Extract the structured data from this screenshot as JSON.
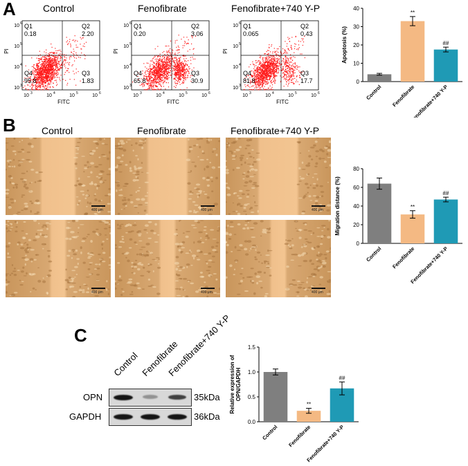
{
  "panels": {
    "A": {
      "letter": "A",
      "groups": [
        "Control",
        "Fenofibrate",
        "Fenofibrate+740 Y-P"
      ],
      "flow_axes": {
        "x_label": "FITC",
        "y_label": "PI",
        "x_ticks": [
          "10",
          "10",
          "10",
          "10"
        ],
        "x_exps": [
          "3",
          "4",
          "5",
          "6"
        ],
        "y_ticks": [
          "10",
          "10",
          "10",
          "10"
        ],
        "y_exps": [
          "6",
          "5",
          "4",
          "3"
        ]
      },
      "quadrants": [
        {
          "Q1": "0.18",
          "Q2": "2.20",
          "Q3": "1.83",
          "Q4": "95.8"
        },
        {
          "Q1": "0.20",
          "Q2": "3.06",
          "Q3": "30.9",
          "Q4": "65.8"
        },
        {
          "Q1": "0.065",
          "Q2": "0.43",
          "Q3": "17.7",
          "Q4": "81.8"
        }
      ],
      "quadrant_names": {
        "q1": "Q1",
        "q2": "Q2",
        "q3": "Q3",
        "q4": "Q4"
      }
    },
    "B": {
      "letter": "B",
      "groups": [
        "Control",
        "Fenofibrate",
        "Fenofibrate+740 Y-P"
      ],
      "scale_label": "400 μm",
      "wound_fraction_top": [
        0.3,
        0.35,
        0.35
      ],
      "wound_fraction_bottom": [
        0.12,
        0.12,
        0.12
      ]
    },
    "C": {
      "letter": "C",
      "lanes": [
        "Control",
        "Fenofibrate",
        "Fenofibrate+740 Y-P"
      ],
      "rows": [
        {
          "protein": "OPN",
          "size": "35kDa",
          "intensity": [
            1.0,
            0.3,
            0.75
          ]
        },
        {
          "protein": "GAPDH",
          "size": "36kDa",
          "intensity": [
            1.0,
            1.0,
            1.0
          ]
        }
      ]
    }
  },
  "colors": {
    "control": "#7f7f7f",
    "fenofibrate": "#f4b983",
    "combo": "#1f9ab5",
    "dots": "#ff1a1a"
  },
  "chart_data": [
    {
      "type": "bar",
      "title": "",
      "categories": [
        "Control",
        "Fenofibrate",
        "Fenofibrate+740 Y-P"
      ],
      "values": [
        4,
        33,
        17.5
      ],
      "errors": [
        0.5,
        2.5,
        1.3
      ],
      "annotations": [
        "",
        "**",
        "##"
      ],
      "ylabel": "Apoptosis (%)",
      "ylim": [
        0,
        40
      ],
      "yticks": [
        "0",
        "10",
        "20",
        "30",
        "40"
      ]
    },
    {
      "type": "bar",
      "title": "",
      "categories": [
        "Control",
        "Fenofibrate",
        "Fenofibrate+740 Y-P"
      ],
      "values": [
        64,
        31,
        47
      ],
      "errors": [
        6,
        4,
        2.5
      ],
      "annotations": [
        "",
        "**",
        "##"
      ],
      "ylabel": "Migration distance (%)",
      "ylim": [
        0,
        80
      ],
      "yticks": [
        "0",
        "20",
        "40",
        "60",
        "80"
      ]
    },
    {
      "type": "bar",
      "title": "",
      "categories": [
        "Control",
        "Fenofibrate",
        "Fenofibrate+740 Y-P"
      ],
      "values": [
        1.0,
        0.22,
        0.67
      ],
      "errors": [
        0.06,
        0.05,
        0.13
      ],
      "annotations": [
        "",
        "**",
        "##"
      ],
      "ylabel": "Relative expression of OPN/GAPDH",
      "ylabel_lines": [
        "Relative expression of",
        "OPN/GAPDH"
      ],
      "ylim": [
        0,
        1.5
      ],
      "yticks": [
        "0.0",
        "0.5",
        "1.0",
        "1.5"
      ]
    }
  ]
}
